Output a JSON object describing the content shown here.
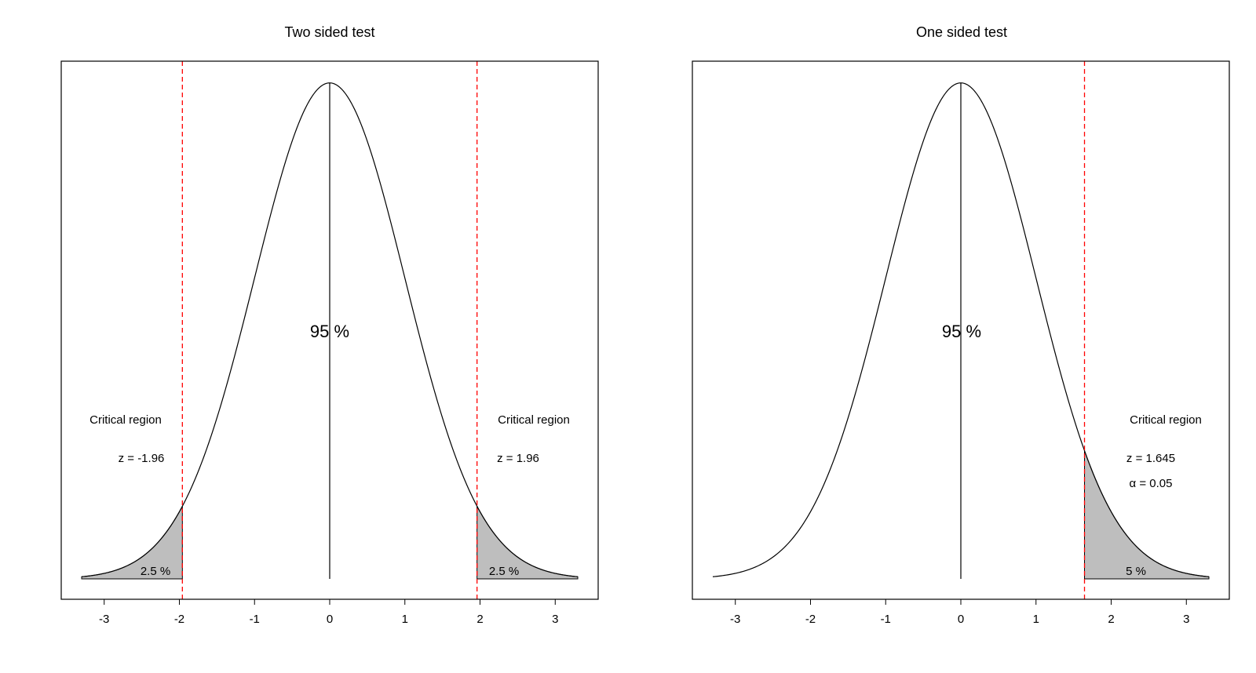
{
  "colors": {
    "critical_line": "#ff0000",
    "shade": "#bebebe",
    "curve": "#000000"
  },
  "chart_data": [
    {
      "type": "area",
      "title": "Two sided test",
      "xlabel": "",
      "ylabel": "",
      "xlim": [
        -3.3,
        3.3
      ],
      "ylim": [
        0,
        0.4
      ],
      "x_ticks": [
        "-3",
        "-2",
        "-1",
        "0",
        "1",
        "2",
        "3"
      ],
      "curve": "standard normal density",
      "center_line_x": 0,
      "critical_lines_x": [
        -1.96,
        1.96
      ],
      "shaded_regions": [
        [
          -3.3,
          -1.96
        ],
        [
          1.96,
          3.3
        ]
      ],
      "center_label": "95 %",
      "left_annotation": {
        "region_label": "Critical region",
        "z_label": "z = -1.96",
        "pct_label": "2.5 %"
      },
      "right_annotation": {
        "region_label": "Critical region",
        "z_label": "z = 1.96",
        "pct_label": "2.5 %"
      }
    },
    {
      "type": "area",
      "title": "One sided test",
      "xlabel": "",
      "ylabel": "",
      "xlim": [
        -3.3,
        3.3
      ],
      "ylim": [
        0,
        0.4
      ],
      "x_ticks": [
        "-3",
        "-2",
        "-1",
        "0",
        "1",
        "2",
        "3"
      ],
      "curve": "standard normal density",
      "center_line_x": 0,
      "critical_lines_x": [
        1.645
      ],
      "shaded_regions": [
        [
          1.645,
          3.3
        ]
      ],
      "center_label": "95 %",
      "right_annotation": {
        "region_label": "Critical region",
        "z_label": "z = 1.645",
        "alpha_label": "α = 0.05",
        "pct_label": "5 %"
      }
    }
  ]
}
